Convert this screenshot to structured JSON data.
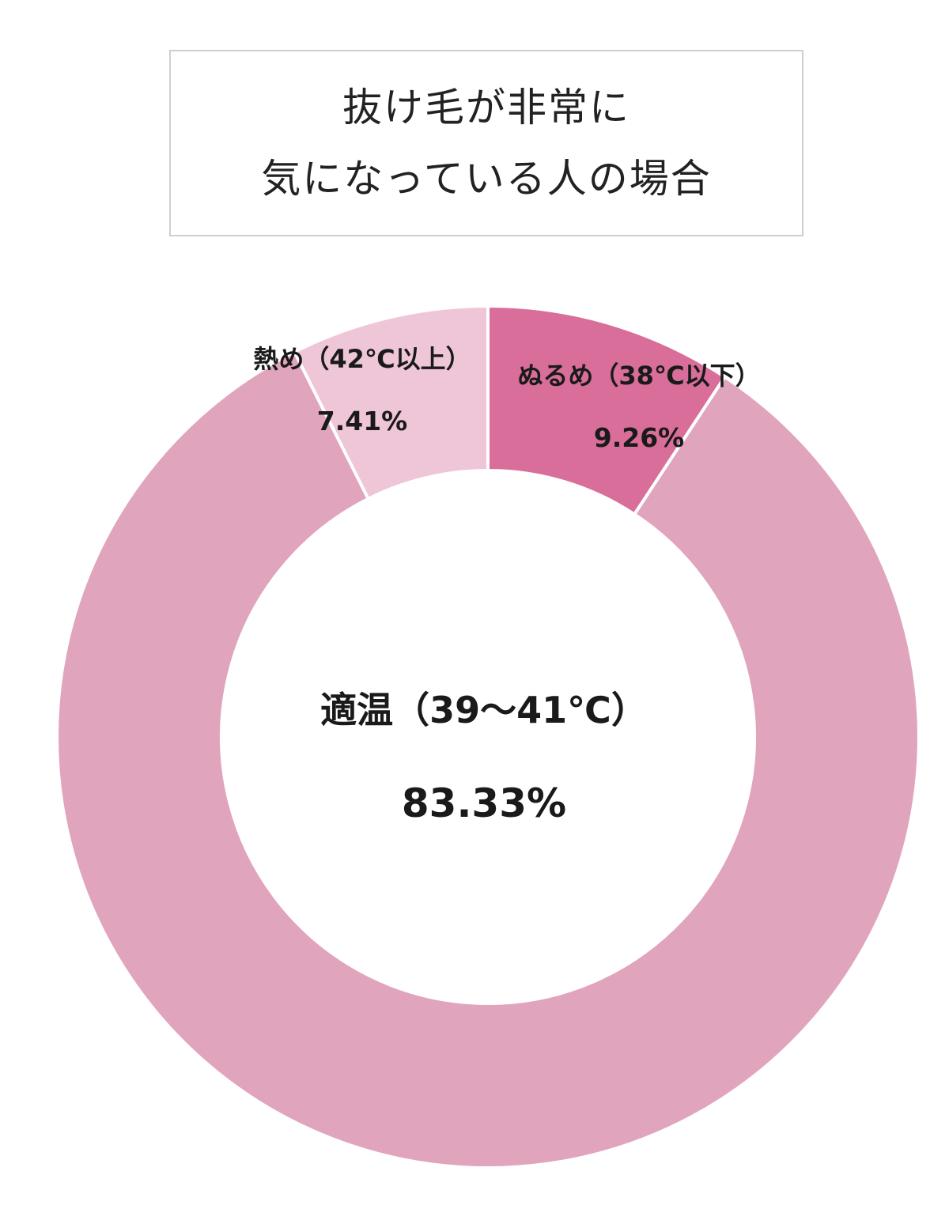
{
  "title_lines": [
    "抜け毛が非常に",
    "気になっている人の場合"
  ],
  "chart_data": {
    "type": "pie",
    "variant": "donut",
    "title": "抜け毛が非常に 気になっている人の場合",
    "slices": [
      {
        "label": "ぬるめ（38℃以下）",
        "value": 9.26,
        "value_label": "9.26%",
        "color": "#d86e99"
      },
      {
        "label": "適温（39～41℃）",
        "value": 83.33,
        "value_label": "83.33%",
        "color": "#e1a4bd"
      },
      {
        "label": "熱め（42℃以上）",
        "value": 7.41,
        "value_label": "7.41%",
        "color": "#efc6d7"
      }
    ],
    "start": "top",
    "direction": "clockwise",
    "legend": "none"
  }
}
